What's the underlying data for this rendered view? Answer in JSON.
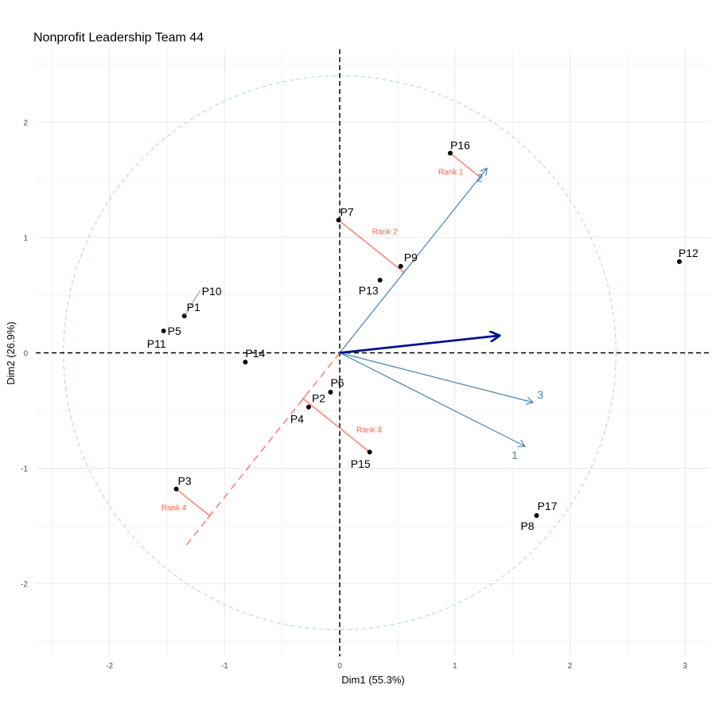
{
  "chart_data": {
    "type": "scatter",
    "title": "Nonprofit Leadership Team 44",
    "xlabel": "Dim1 (55.3%)",
    "ylabel": "Dim2 (26.9%)",
    "xlim": [
      -2.64,
      3.22
    ],
    "ylim": [
      -2.63,
      2.63
    ],
    "x_ticks": [
      -2,
      -1,
      0,
      1,
      2,
      3
    ],
    "y_ticks": [
      -2,
      -1,
      0,
      1,
      2
    ],
    "grid": true,
    "circle_radius": 2.4,
    "points": [
      {
        "name": "P16",
        "x": 0.96,
        "y": 1.73
      },
      {
        "name": "P7",
        "x": -0.01,
        "y": 1.15
      },
      {
        "name": "P9",
        "x": 0.53,
        "y": 0.75
      },
      {
        "name": "P13",
        "x": 0.35,
        "y": 0.63
      },
      {
        "name": "P12",
        "x": 2.95,
        "y": 0.79
      },
      {
        "name": "P10",
        "x": -1.35,
        "y": 0.32
      },
      {
        "name": "P1",
        "x": -1.35,
        "y": 0.32
      },
      {
        "name": "P5",
        "x": -1.53,
        "y": 0.19
      },
      {
        "name": "P11",
        "x": -1.53,
        "y": 0.19
      },
      {
        "name": "P14",
        "x": -0.82,
        "y": -0.08
      },
      {
        "name": "P6",
        "x": -0.08,
        "y": -0.34
      },
      {
        "name": "P2",
        "x": -0.27,
        "y": -0.47
      },
      {
        "name": "P4",
        "x": -0.27,
        "y": -0.47
      },
      {
        "name": "P15",
        "x": 0.26,
        "y": -0.86
      },
      {
        "name": "P3",
        "x": -1.42,
        "y": -1.18
      },
      {
        "name": "P17",
        "x": 1.71,
        "y": -1.41
      },
      {
        "name": "P8",
        "x": 1.71,
        "y": -1.41
      }
    ],
    "vectors": [
      {
        "label": "2",
        "x": 1.28,
        "y": 1.6
      },
      {
        "label": "3",
        "x": 1.68,
        "y": -0.43
      },
      {
        "label": "1",
        "x": 1.61,
        "y": -0.81
      }
    ],
    "mean_vector": {
      "x": 1.39,
      "y": 0.15
    },
    "projection_axis": {
      "vector": "2",
      "negative_extent": -2.15
    },
    "ranks": [
      {
        "label": "Rank 1",
        "point": "P16"
      },
      {
        "label": "Rank 2",
        "point": "P7"
      },
      {
        "label": "Rank 3",
        "point": "P15"
      },
      {
        "label": "Rank 4",
        "point": "P3"
      }
    ],
    "colors": {
      "vector": "#4682b4",
      "mean_vector": "#00128c",
      "rank": "#fa8072",
      "rank_text": "#ff6347",
      "circle": "#a9d4e6",
      "grid": "#ebebeb",
      "point": "#000000"
    }
  }
}
